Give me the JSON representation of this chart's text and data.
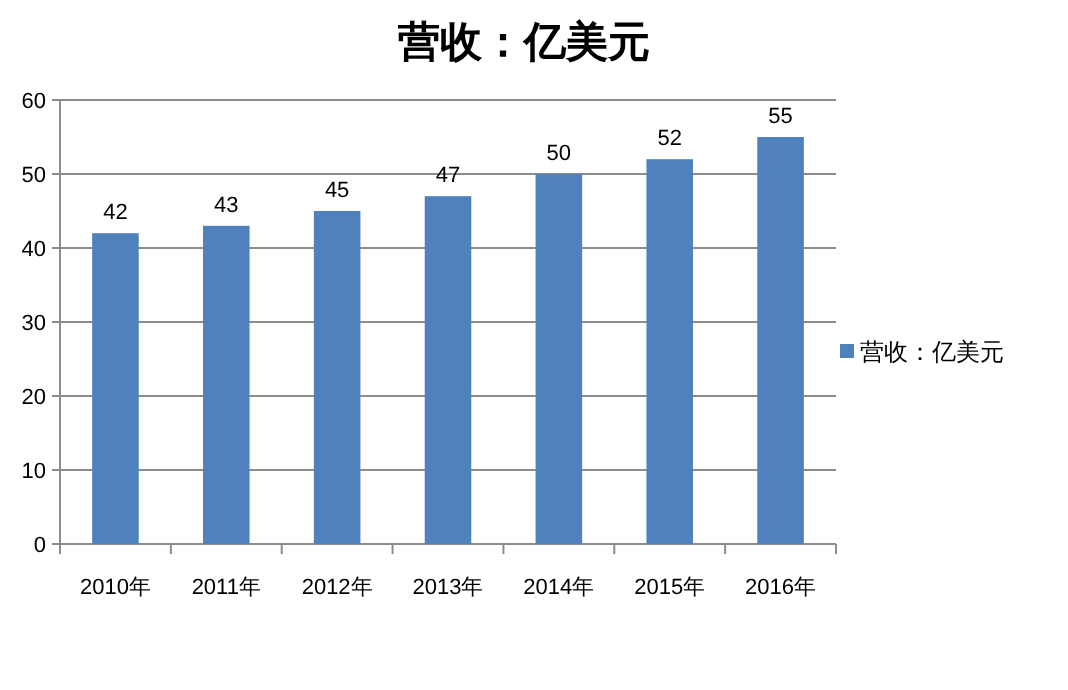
{
  "chart_data": {
    "type": "bar",
    "title": "营收：亿美元",
    "categories": [
      "2010年",
      "2011年",
      "2012年",
      "2013年",
      "2014年",
      "2015年",
      "2016年"
    ],
    "series": [
      {
        "name": "营收：亿美元",
        "color": "#4f81bd",
        "values": [
          42,
          43,
          45,
          47,
          50,
          52,
          55
        ]
      }
    ],
    "ylim": [
      0,
      60
    ],
    "yticks": [
      0,
      10,
      20,
      30,
      40,
      50,
      60
    ],
    "grid": "y",
    "legend": "right",
    "data_labels": true
  }
}
